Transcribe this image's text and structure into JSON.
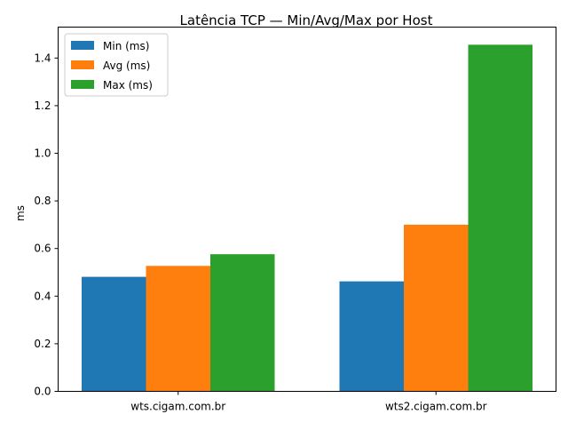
{
  "chart_data": {
    "type": "bar",
    "title": "Latência TCP — Min/Avg/Max por Host",
    "xlabel": "",
    "ylabel": "ms",
    "categories": [
      "wts.cigam.com.br",
      "wts2.cigam.com.br"
    ],
    "series": [
      {
        "name": "Min (ms)",
        "color": "#1f77b4",
        "values": [
          0.481,
          0.462
        ]
      },
      {
        "name": "Avg (ms)",
        "color": "#ff7f0e",
        "values": [
          0.527,
          0.7
        ]
      },
      {
        "name": "Max (ms)",
        "color": "#2ca02c",
        "values": [
          0.576,
          1.456
        ]
      }
    ],
    "ylim": [
      0,
      1.53
    ],
    "yticks": [
      "0.0",
      "0.2",
      "0.4",
      "0.6",
      "0.8",
      "1.0",
      "1.2",
      "1.4"
    ],
    "legend_position": "upper-left",
    "grid": false
  }
}
